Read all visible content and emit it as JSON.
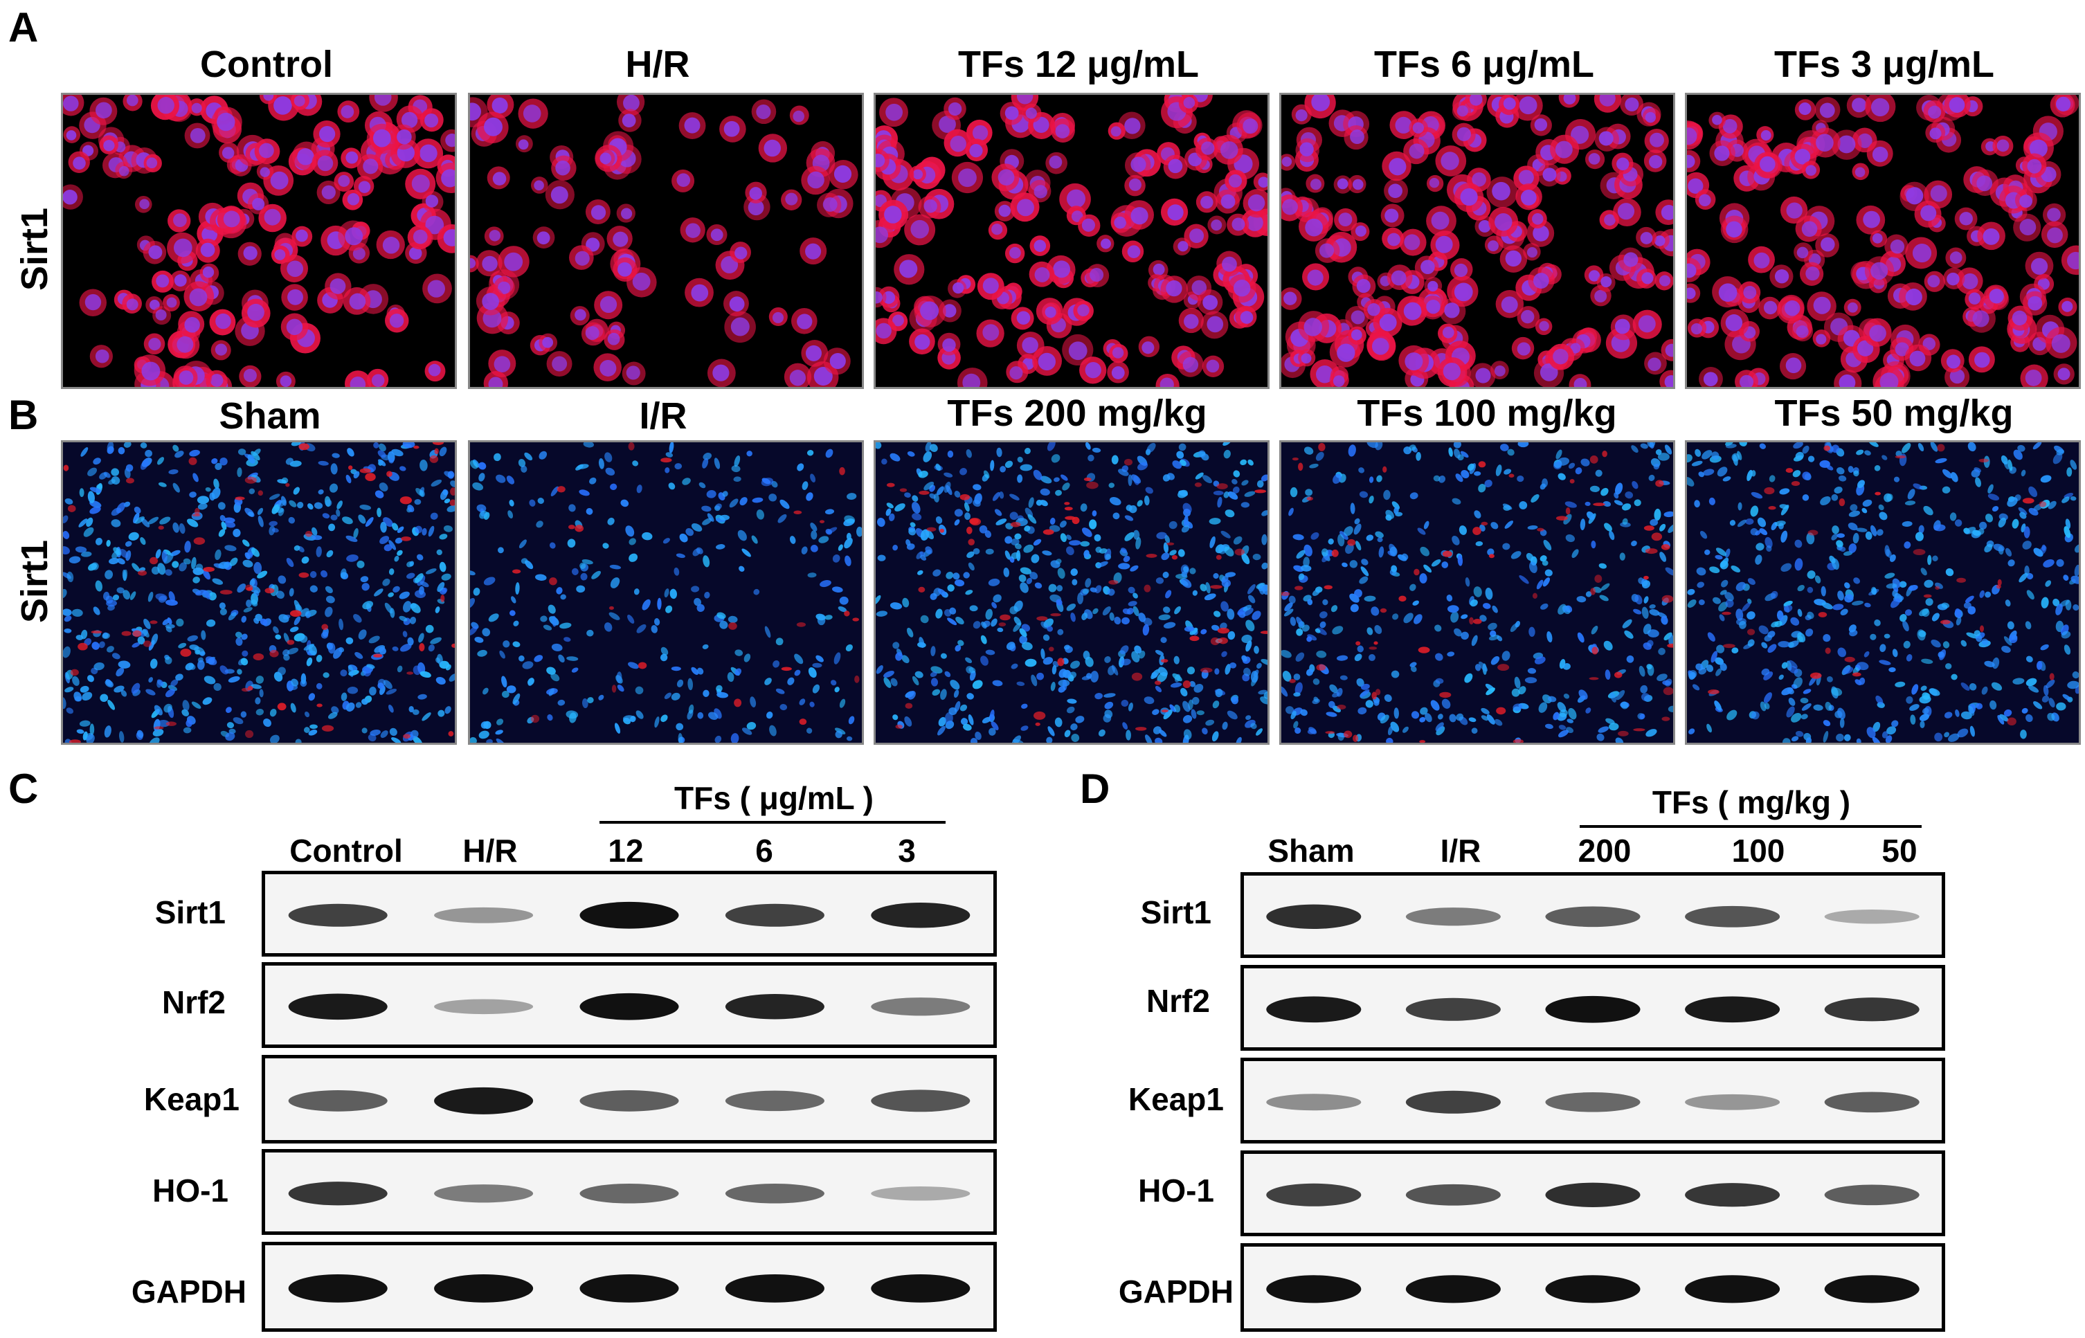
{
  "panel_a": {
    "letter": "A",
    "row_label": "Sirt1",
    "titles": [
      "Control",
      "H/R",
      "TFs 12 μg/mL",
      "TFs 6 μg/mL",
      "TFs 3 μg/mL"
    ]
  },
  "panel_b": {
    "letter": "B",
    "row_label": "Sirt1",
    "titles": [
      "Sham",
      "I/R",
      "TFs 200 mg/kg",
      "TFs 100 mg/kg",
      "TFs 50 mg/kg"
    ]
  },
  "panel_c": {
    "letter": "C",
    "group_label": "TFs ( μg/mL )",
    "lanes": [
      "Control",
      "H/R",
      "12",
      "6",
      "3"
    ],
    "proteins": [
      "Sirt1",
      "Nrf2",
      "Keap1",
      "HO-1",
      "GAPDH"
    ],
    "band_intensity": [
      [
        0.75,
        0.3,
        1.0,
        0.75,
        0.9
      ],
      [
        0.95,
        0.25,
        1.0,
        0.9,
        0.45
      ],
      [
        0.6,
        0.95,
        0.6,
        0.55,
        0.65
      ],
      [
        0.8,
        0.45,
        0.55,
        0.55,
        0.2
      ],
      [
        1.0,
        1.0,
        1.0,
        1.0,
        1.0
      ]
    ]
  },
  "panel_d": {
    "letter": "D",
    "group_label": "TFs ( mg/kg )",
    "lanes": [
      "Sham",
      "I/R",
      "200",
      "100",
      "50"
    ],
    "proteins": [
      "Sirt1",
      "Nrf2",
      "Keap1",
      "HO-1",
      "GAPDH"
    ],
    "band_intensity": [
      [
        0.85,
        0.45,
        0.6,
        0.65,
        0.2
      ],
      [
        0.95,
        0.75,
        1.0,
        0.95,
        0.8
      ],
      [
        0.35,
        0.75,
        0.55,
        0.3,
        0.6
      ],
      [
        0.75,
        0.65,
        0.85,
        0.8,
        0.6
      ],
      [
        1.0,
        1.0,
        1.0,
        1.0,
        1.0
      ]
    ]
  }
}
